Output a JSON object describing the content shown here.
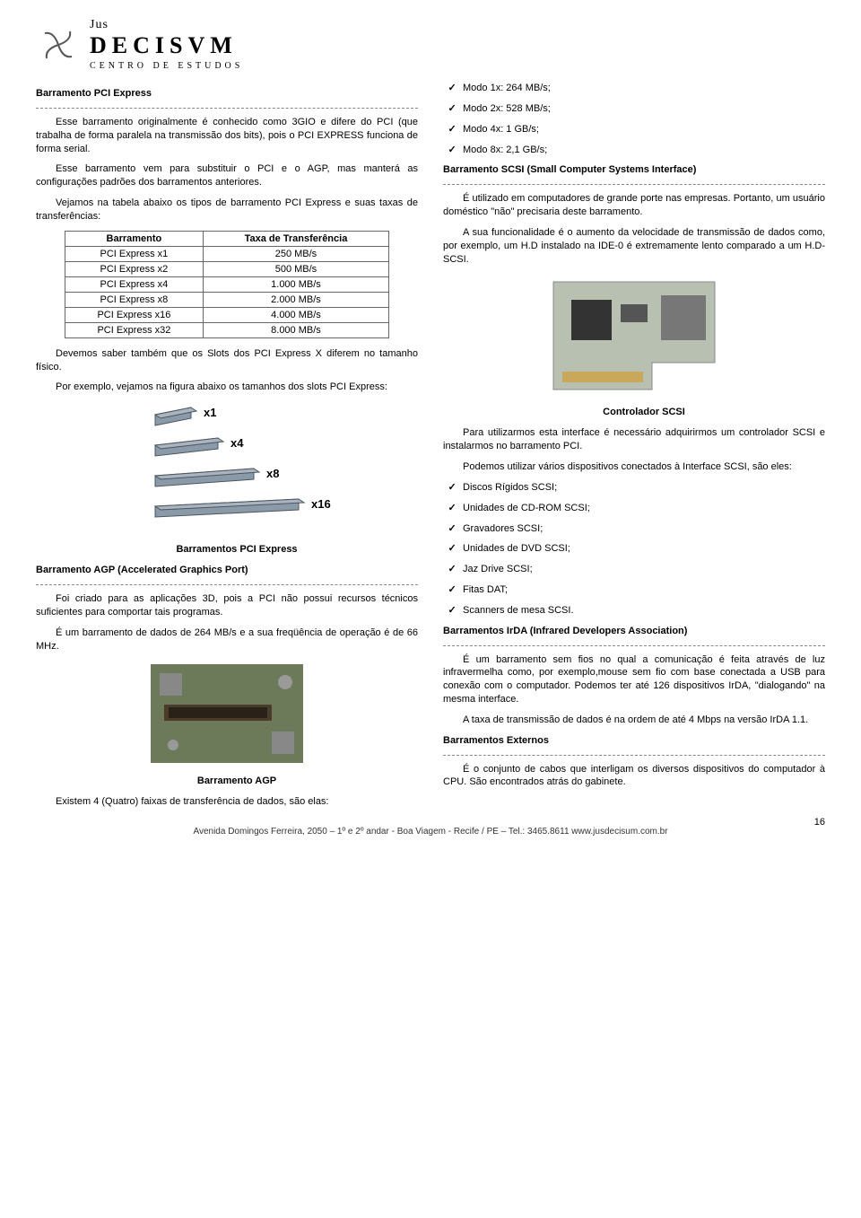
{
  "logo": {
    "top": "Jus",
    "mid": "DECISVM",
    "bot": "CENTRO  DE  ESTUDOS"
  },
  "left": {
    "h1": "Barramento PCI Express",
    "p1": "Esse barramento originalmente é conhecido como 3GIO e difere do PCI (que trabalha de forma paralela na transmissão dos bits), pois o PCI EXPRESS funciona de forma serial.",
    "p2": "Esse barramento vem para substituir o PCI e o AGP, mas manterá as configurações padrões dos barramentos anteriores.",
    "p3": "Vejamos na tabela abaixo os tipos de barramento PCI Express e suas taxas de transferências:",
    "table": {
      "headers": [
        "Barramento",
        "Taxa de Transferência"
      ],
      "rows": [
        [
          "PCI Express x1",
          "250 MB/s"
        ],
        [
          "PCI Express x2",
          "500 MB/s"
        ],
        [
          "PCI Express x4",
          "1.000 MB/s"
        ],
        [
          "PCI Express x8",
          "2.000 MB/s"
        ],
        [
          "PCI Express x16",
          "4.000 MB/s"
        ],
        [
          "PCI Express x32",
          "8.000 MB/s"
        ]
      ]
    },
    "p4": "Devemos saber também que os Slots dos PCI Express X diferem no tamanho físico.",
    "p5": "Por exemplo, vejamos na figura abaixo os tamanhos dos slots PCI Express:",
    "slot_labels": [
      "x1",
      "x4",
      "x8",
      "x16"
    ],
    "cap1": "Barramentos PCI Express",
    "h2": "Barramento AGP (Accelerated Graphics Port)",
    "p6": "Foi criado para as aplicações 3D, pois a PCI não possui recursos técnicos suficientes para comportar tais programas.",
    "p7": "É um barramento de dados de 264 MB/s e a sua freqüência de operação é de 66 MHz.",
    "cap2": "Barramento AGP",
    "p8": "Existem 4 (Quatro) faixas de transferência de dados, são elas:",
    "modes_left": [
      "Modo 1x: 264 MB/s;",
      "Modo 2x: 528 MB/s;"
    ]
  },
  "right": {
    "modes_right": [
      "Modo 4x: 1 GB/s;",
      "Modo 8x: 2,1 GB/s;"
    ],
    "h3": "Barramento SCSI (Small Computer Systems Interface)",
    "p9": "É utilizado em computadores de grande porte nas empresas. Portanto, um usuário doméstico \"não\" precisaria deste barramento.",
    "p10": "A sua funcionalidade é o aumento da velocidade de transmissão de dados como, por exemplo, um H.D instalado na IDE-0 é extremamente lento comparado a um H.D- SCSI.",
    "cap3": "Controlador SCSI",
    "p11": "Para utilizarmos esta interface é necessário adquirirmos um controlador SCSI e instalarmos no barramento PCI.",
    "p12": "Podemos utilizar vários dispositivos conectados à Interface SCSI, são eles:",
    "devices": [
      "Discos Rígidos SCSI;",
      "Unidades de CD-ROM SCSI;",
      "Gravadores SCSI;",
      "Unidades de DVD SCSI;",
      "Jaz Drive SCSI;",
      "Fitas DAT;",
      "Scanners de mesa SCSI."
    ],
    "h4": "Barramentos IrDA (Infrared Developers Association)",
    "p13": "É um barramento sem fios no qual a comunicação é feita através de luz infravermelha como, por exemplo,mouse sem fio com base conectada a USB para conexão com o computador. Podemos ter até 126 dispositivos IrDA, \"dialogando\" na mesma interface.",
    "p14": "A taxa de transmissão de dados é na ordem de até 4 Mbps na versão IrDA 1.1.",
    "h5": "Barramentos Externos",
    "p15": "É o conjunto de cabos que interligam os diversos dispositivos do computador à CPU. São encontrados atrás do gabinete."
  },
  "footer": "Avenida Domingos Ferreira, 2050 – 1º e 2º andar  - Boa Viagem  - Recife / PE – Tel.: 3465.8611  www.jusdecisum.com.br",
  "pagenum": "16",
  "colors": {
    "text": "#000000",
    "dash": "#888888",
    "tableBorder": "#666666",
    "slotFill": "#8a9aa8",
    "slotLine": "#4a5560",
    "agpBoard": "#6d7a5a",
    "agpSlot": "#4a3b2a",
    "scsiBoard": "#b8c0b2",
    "scsiChip": "#333333"
  }
}
